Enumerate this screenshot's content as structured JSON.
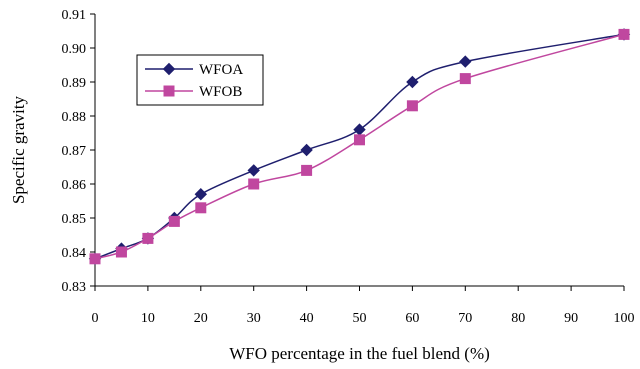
{
  "chart_data": {
    "type": "line",
    "title": "",
    "xlabel": "WFO percentage in the fuel blend (%)",
    "ylabel": "Specific gravity",
    "xlim": [
      0,
      100
    ],
    "ylim": [
      0.83,
      0.91
    ],
    "x_ticks": [
      0,
      10,
      20,
      30,
      40,
      50,
      60,
      70,
      80,
      90,
      100
    ],
    "x_tick_labels": [
      "0",
      "10",
      "20",
      "30",
      "40",
      "50",
      "60",
      "70",
      "80",
      "90",
      "100"
    ],
    "y_ticks": [
      0.83,
      0.84,
      0.85,
      0.86,
      0.87,
      0.88,
      0.89,
      0.9,
      0.91
    ],
    "y_tick_labels": [
      "0.83",
      "0.84",
      "0.85",
      "0.86",
      "0.87",
      "0.88",
      "0.89",
      "0.90",
      "0.91"
    ],
    "grid": false,
    "legend_position": "upper-left",
    "series": [
      {
        "name": "WFOA",
        "marker": "diamond",
        "color": "#1f1f6e",
        "x": [
          0,
          5,
          10,
          15,
          20,
          30,
          40,
          50,
          60,
          70,
          100
        ],
        "y": [
          0.838,
          0.841,
          0.844,
          0.85,
          0.857,
          0.864,
          0.87,
          0.876,
          0.89,
          0.896,
          0.904
        ]
      },
      {
        "name": "WFOB",
        "marker": "square",
        "color": "#c0479f",
        "x": [
          0,
          5,
          10,
          15,
          20,
          30,
          40,
          50,
          60,
          70,
          100
        ],
        "y": [
          0.838,
          0.84,
          0.844,
          0.849,
          0.853,
          0.86,
          0.864,
          0.873,
          0.883,
          0.891,
          0.904
        ]
      }
    ]
  }
}
